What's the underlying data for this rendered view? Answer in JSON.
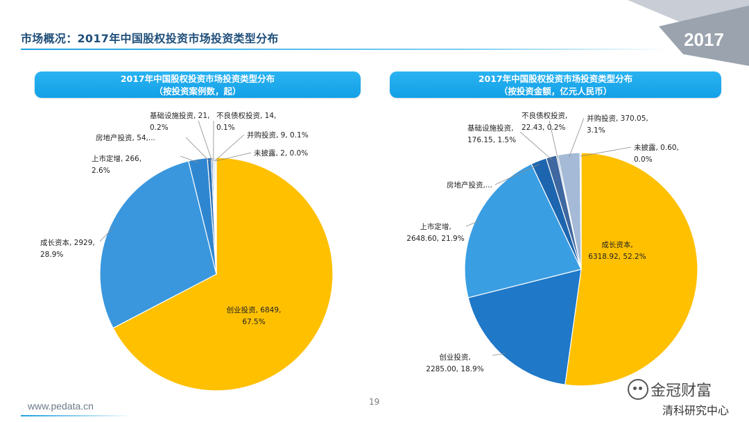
{
  "header": {
    "title": "市场概况：2017年中国股权投资市场投资类型分布",
    "year_badge": "2017"
  },
  "footer": {
    "url": "www.pedata.cn",
    "page_number": "19"
  },
  "watermark": {
    "line1": "金冠财富",
    "line2": "清科研究中心"
  },
  "colors": {
    "accent": "#12a0e6",
    "title": "#1f4e79",
    "gold": "#ffc000"
  },
  "chart_data": [
    {
      "type": "pie",
      "title": "2017年中国股权投资市场投资类型分布",
      "subtitle": "（按投资案例数，起）",
      "slices": [
        {
          "name": "创业投资",
          "value": 6849,
          "percent": "67.5%",
          "label_line1": "创业投资, 6849,",
          "label_line2": "67.5%",
          "color": "#ffc000"
        },
        {
          "name": "成长资本",
          "value": 2929,
          "percent": "28.9%",
          "label_line1": "成长资本, 2929,",
          "label_line2": "28.9%",
          "color": "#3a97dd"
        },
        {
          "name": "上市定增",
          "value": 266,
          "percent": "2.6%",
          "label_line1": "上市定增, 266,",
          "label_line2": "2.6%",
          "color": "#2f86d0"
        },
        {
          "name": "房地产投资",
          "value": 54,
          "percent": "",
          "label_line1": "房地产投资, 54,...",
          "label_line2": "",
          "color": "#2a6fb5"
        },
        {
          "name": "基础设施投资",
          "value": 21,
          "percent": "0.2%",
          "label_line1": "基础设施投资, 21,",
          "label_line2": "0.2%",
          "color": "#3c6ea8"
        },
        {
          "name": "不良债权投资",
          "value": 14,
          "percent": "0.1%",
          "label_line1": "不良债权投资, 14,",
          "label_line2": "0.1%",
          "color": "#7f9dc0"
        },
        {
          "name": "并购投资",
          "value": 9,
          "percent": "0.1%",
          "label_line1": "并购投资, 9, 0.1%",
          "label_line2": "",
          "color": "#9fb6d3"
        },
        {
          "name": "未披露",
          "value": 2,
          "percent": "0.0%",
          "label_line1": "未披露, 2, 0.0%",
          "label_line2": "",
          "color": "#c2d3e6"
        }
      ]
    },
    {
      "type": "pie",
      "title": "2017年中国股权投资市场投资类型分布",
      "subtitle": "（按投资金额，亿元人民币）",
      "slices": [
        {
          "name": "成长资本",
          "value": 6318.92,
          "percent": "52.2%",
          "label_line1": "成长资本,",
          "label_line2": "6318.92, 52.2%",
          "color": "#ffc000"
        },
        {
          "name": "创业投资",
          "value": 2285.0,
          "percent": "18.9%",
          "label_line1": "创业投资,",
          "label_line2": "2285.00, 18.9%",
          "color": "#1f78c8"
        },
        {
          "name": "上市定增",
          "value": 2648.6,
          "percent": "21.9%",
          "label_line1": "上市定增,",
          "label_line2": "2648.60, 21.9%",
          "color": "#3a9ee3"
        },
        {
          "name": "房地产投资",
          "value": 0,
          "percent": "",
          "label_line1": "房地产投资,...",
          "label_line2": "",
          "color": "#1d65ae"
        },
        {
          "name": "基础设施投资",
          "value": 176.15,
          "percent": "1.5%",
          "label_line1": "基础设施投资,",
          "label_line2": "176.15, 1.5%",
          "color": "#3f67a0"
        },
        {
          "name": "不良债权投资",
          "value": 22.43,
          "percent": "0.2%",
          "label_line1": "不良债权投资,",
          "label_line2": "22.43, 0.2%",
          "color": "#5f7fae"
        },
        {
          "name": "并购投资",
          "value": 370.05,
          "percent": "3.1%",
          "label_line1": "并购投资, 370.05,",
          "label_line2": "3.1%",
          "color": "#a4bad6"
        },
        {
          "name": "未披露",
          "value": 0.6,
          "percent": "0.0%",
          "label_line1": "未披露, 0.60,",
          "label_line2": "0.0%",
          "color": "#c9d8ea"
        }
      ]
    }
  ]
}
